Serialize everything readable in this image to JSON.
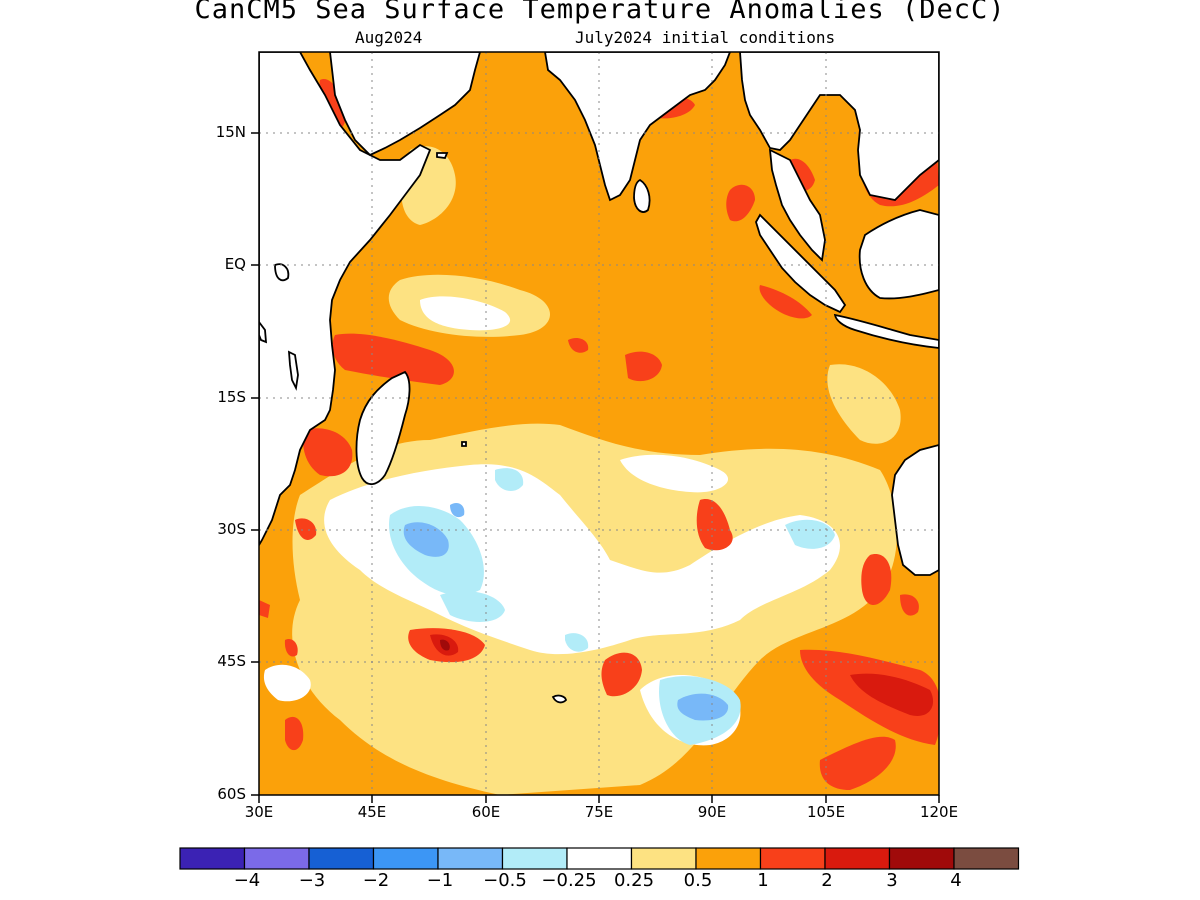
{
  "title": "CanCM5 Sea Surface Temperature Anomalies (DecC)",
  "subtitle_left": "Aug2024",
  "subtitle_right": "July2024 initial conditions",
  "map": {
    "region": "Indian Ocean",
    "lon_range": [
      30,
      120
    ],
    "lat_range": [
      -60,
      22
    ],
    "lat_ticks": [
      {
        "value": 15,
        "label": "15N"
      },
      {
        "value": 0,
        "label": "EQ"
      },
      {
        "value": -15,
        "label": "15S"
      },
      {
        "value": -30,
        "label": "30S"
      },
      {
        "value": -45,
        "label": "45S"
      },
      {
        "value": -60,
        "label": "60S"
      }
    ],
    "lon_ticks": [
      {
        "value": 30,
        "label": "30E"
      },
      {
        "value": 45,
        "label": "45E"
      },
      {
        "value": 60,
        "label": "60E"
      },
      {
        "value": 75,
        "label": "75E"
      },
      {
        "value": 90,
        "label": "90E"
      },
      {
        "value": 105,
        "label": "105E"
      },
      {
        "value": 120,
        "label": "120E"
      }
    ],
    "grid": "dotted"
  },
  "colorbar": {
    "colors": [
      "#3b22b4",
      "#7b6ae8",
      "#1660d4",
      "#3c96f5",
      "#78b8f8",
      "#b2ecf8",
      "#ffffff",
      "#fde282",
      "#fba10a",
      "#f8401a",
      "#d91a0e",
      "#a00a0a",
      "#7b4c40"
    ],
    "labels": [
      "-4",
      "-3",
      "-2",
      "-1",
      "-0.5",
      "-0.25",
      "0.25",
      "0.5",
      "1",
      "2",
      "3",
      "4"
    ]
  }
}
